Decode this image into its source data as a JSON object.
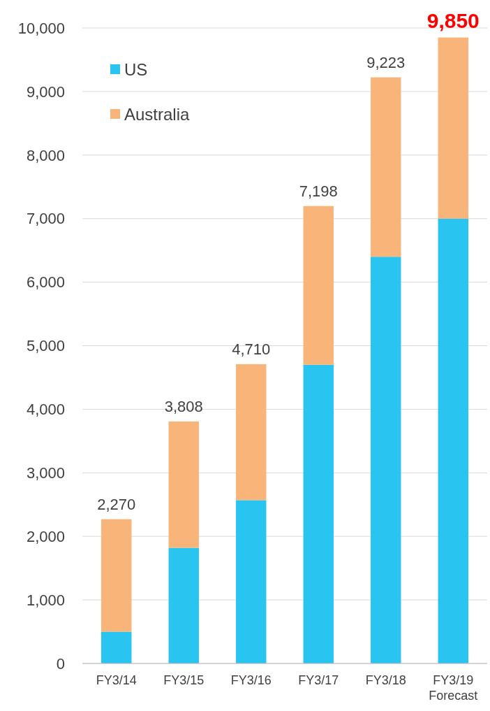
{
  "chart_data": {
    "type": "bar",
    "stacked": true,
    "categories": [
      "FY3/14",
      "FY3/15",
      "FY3/16",
      "FY3/17",
      "FY3/18",
      "FY3/19\nForecast"
    ],
    "series": [
      {
        "name": "US",
        "color": "#29c5f0",
        "values": [
          500,
          1820,
          2570,
          4700,
          6400,
          7000
        ]
      },
      {
        "name": "Australia",
        "color": "#f9b47a",
        "values": [
          1770,
          1988,
          2140,
          2498,
          2823,
          2850
        ]
      }
    ],
    "totals": [
      "2,270",
      "3,808",
      "4,710",
      "7,198",
      "9,223",
      "9,850"
    ],
    "ylim": [
      0,
      10000
    ],
    "yticks": [
      {
        "value": 0,
        "label": "0"
      },
      {
        "value": 1000,
        "label": "1,000"
      },
      {
        "value": 2000,
        "label": "2,000"
      },
      {
        "value": 3000,
        "label": "3,000"
      },
      {
        "value": 4000,
        "label": "4,000"
      },
      {
        "value": 5000,
        "label": "5,000"
      },
      {
        "value": 6000,
        "label": "6,000"
      },
      {
        "value": 7000,
        "label": "7,000"
      },
      {
        "value": 8000,
        "label": "8,000"
      },
      {
        "value": 9000,
        "label": "9,000"
      },
      {
        "value": 10000,
        "label": "10,000"
      }
    ],
    "grid": "y",
    "legend": "top left"
  }
}
